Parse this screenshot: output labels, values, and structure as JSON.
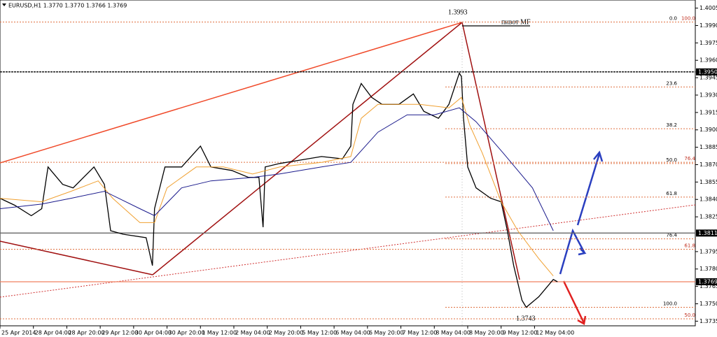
{
  "chart_data": {
    "type": "line",
    "title": "EURUSD,H1  1.3770 1.3770 1.3766 1.3769",
    "xlim": [
      0,
      333
    ],
    "ylim": [
      1.3731,
      1.4012
    ],
    "xticks": [
      {
        "value": 0,
        "label": "25 Apr 2014"
      },
      {
        "value": 16,
        "label": "28 Apr 04:00"
      },
      {
        "value": 32,
        "label": "28 Apr 20:00"
      },
      {
        "value": 48,
        "label": "29 Apr 12:00"
      },
      {
        "value": 64,
        "label": "30 Apr 04:00"
      },
      {
        "value": 80,
        "label": "30 Apr 20:00"
      },
      {
        "value": 96,
        "label": "1 May 12:00"
      },
      {
        "value": 112,
        "label": "2 May 04:00"
      },
      {
        "value": 128,
        "label": "2 May 20:00"
      },
      {
        "value": 144,
        "label": "5 May 12:00"
      },
      {
        "value": 160,
        "label": "6 May 04:00"
      },
      {
        "value": 176,
        "label": "6 May 20:00"
      },
      {
        "value": 192,
        "label": "7 May 12:00"
      },
      {
        "value": 208,
        "label": "8 May 04:00"
      },
      {
        "value": 224,
        "label": "8 May 20:00"
      },
      {
        "value": 240,
        "label": "9 May 12:00"
      },
      {
        "value": 256,
        "label": "12 May 04:00"
      }
    ],
    "yticks": [
      {
        "value": 1.4005,
        "label": "1.4005"
      },
      {
        "value": 1.399,
        "label": "1.3990"
      },
      {
        "value": 1.3975,
        "label": "1.3975"
      },
      {
        "value": 1.396,
        "label": "1.3960"
      },
      {
        "value": 1.3945,
        "label": "1.3945"
      },
      {
        "value": 1.393,
        "label": "1.3930"
      },
      {
        "value": 1.3915,
        "label": "1.3915"
      },
      {
        "value": 1.39,
        "label": "1.3900"
      },
      {
        "value": 1.3885,
        "label": "1.3885"
      },
      {
        "value": 1.387,
        "label": "1.3870"
      },
      {
        "value": 1.3855,
        "label": "1.3855"
      },
      {
        "value": 1.384,
        "label": "1.3840"
      },
      {
        "value": 1.3825,
        "label": "1.3825"
      },
      {
        "value": 1.3795,
        "label": "1.3795"
      },
      {
        "value": 1.378,
        "label": "1.3780"
      },
      {
        "value": 1.3765,
        "label": "1.3765"
      },
      {
        "value": 1.375,
        "label": "1.3750"
      },
      {
        "value": 1.3735,
        "label": "1.3735"
      }
    ],
    "series": [
      {
        "color": "#000000",
        "x": [
          0,
          7,
          15,
          20,
          23,
          30,
          35,
          45,
          50,
          53,
          59,
          70,
          73,
          74,
          79,
          87,
          96,
          101,
          111,
          119,
          124,
          126,
          127,
          134,
          144,
          154,
          164,
          168,
          169,
          173,
          178,
          183,
          191,
          198,
          203,
          210,
          215,
          220,
          221,
          222,
          224,
          228,
          235,
          240,
          243,
          246,
          250,
          252,
          258,
          265,
          267
        ],
        "values": [
          1.3841,
          1.3835,
          1.3826,
          1.3832,
          1.3868,
          1.3853,
          1.385,
          1.3868,
          1.3853,
          1.3813,
          1.381,
          1.3807,
          1.3783,
          1.3832,
          1.3868,
          1.3868,
          1.3886,
          1.3868,
          1.3865,
          1.3859,
          1.3859,
          1.3816,
          1.3868,
          1.3871,
          1.3874,
          1.3877,
          1.3875,
          1.3886,
          1.3922,
          1.394,
          1.3928,
          1.3922,
          1.3922,
          1.3931,
          1.3916,
          1.391,
          1.3922,
          1.3949,
          1.3946,
          1.391,
          1.3868,
          1.385,
          1.3841,
          1.3838,
          1.3813,
          1.3783,
          1.3753,
          1.3747,
          1.3756,
          1.3771,
          1.3769
        ]
      },
      {
        "color": "#f0a030",
        "x": [
          0,
          20,
          34,
          47,
          54,
          67,
          74,
          80,
          94,
          107,
          121,
          134,
          154,
          168,
          173,
          181,
          201,
          215,
          221,
          225,
          231,
          240,
          248,
          258,
          265
        ],
        "values": [
          1.3841,
          1.3838,
          1.3847,
          1.3856,
          1.3841,
          1.382,
          1.382,
          1.385,
          1.3868,
          1.3868,
          1.3862,
          1.3868,
          1.3872,
          1.3877,
          1.391,
          1.3922,
          1.3922,
          1.3919,
          1.3928,
          1.3904,
          1.388,
          1.3838,
          1.3813,
          1.3789,
          1.3774
        ]
      },
      {
        "color": "#1a1a8c",
        "x": [
          0,
          20,
          34,
          50,
          67,
          74,
          87,
          101,
          121,
          134,
          154,
          168,
          181,
          195,
          208,
          220,
          228,
          241,
          255,
          265
        ],
        "values": [
          1.3832,
          1.3836,
          1.3841,
          1.3847,
          1.3832,
          1.3826,
          1.385,
          1.3856,
          1.3859,
          1.3862,
          1.3868,
          1.3872,
          1.3898,
          1.3913,
          1.3913,
          1.3919,
          1.3907,
          1.388,
          1.385,
          1.3813
        ]
      }
    ],
    "levels": [
      {
        "value": 1.395,
        "label": "1.3950",
        "color": "#000000"
      },
      {
        "value": 1.3811,
        "label": "1.3811",
        "color": "#666666"
      },
      {
        "value": 1.3769,
        "label": "1.3769",
        "color": "#f08060"
      }
    ],
    "fib_levels": [
      {
        "value": 1.3993,
        "label": "0.0"
      },
      {
        "value": 1.3937,
        "label": "23.6"
      },
      {
        "value": 1.3901,
        "label": "38.2"
      },
      {
        "value": 1.3871,
        "label": "50.0"
      },
      {
        "value": 1.3842,
        "label": "61.8"
      },
      {
        "value": 1.3806,
        "label": "76.4"
      },
      {
        "value": 1.3747,
        "label": "100.0"
      }
    ],
    "fib_levels_2": [
      {
        "value": 1.3993,
        "label": "100.0"
      },
      {
        "value": 1.3872,
        "label": "76.4"
      },
      {
        "value": 1.3797,
        "label": "61.8"
      },
      {
        "value": 1.3737,
        "label": "50.0"
      }
    ],
    "annotations": [
      "1.3993",
      "1.3743",
      "пивот MF"
    ]
  }
}
